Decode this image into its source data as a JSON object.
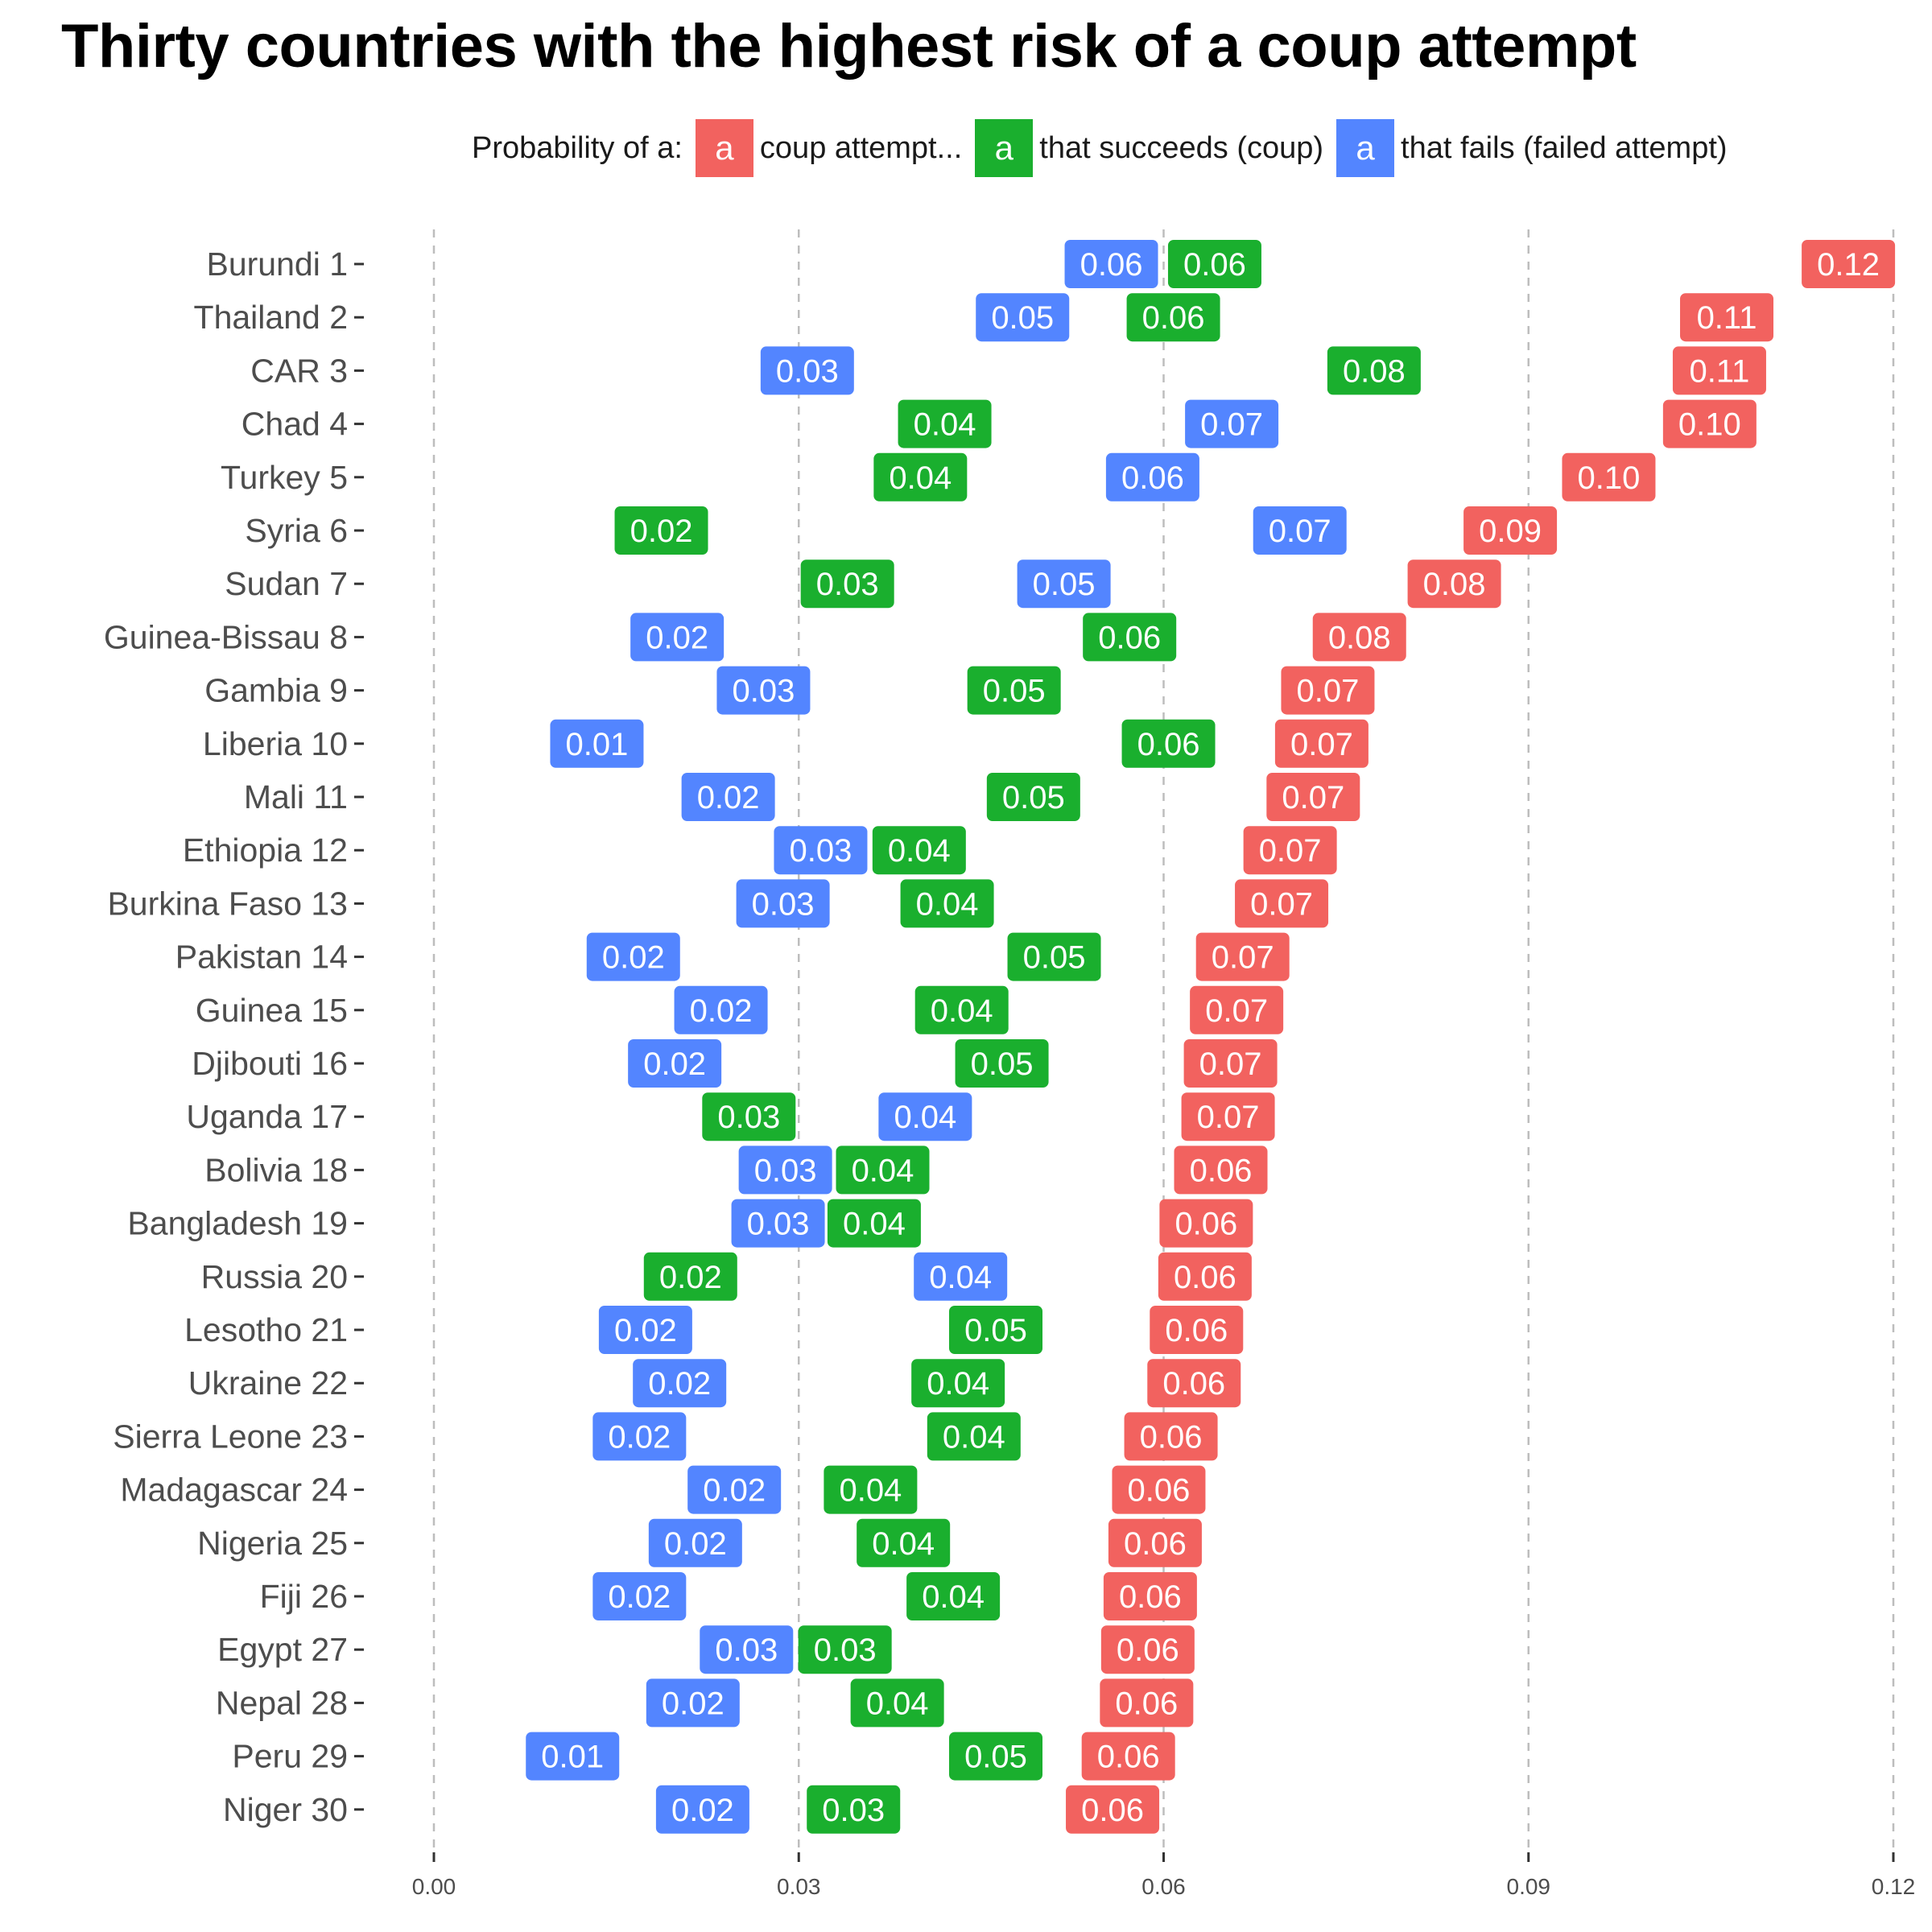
{
  "chart_data": {
    "type": "scatter",
    "title": "Thirty countries with the highest risk of a coup attempt",
    "xlabel": "",
    "ylabel": "",
    "xlim": [
      0,
      0.12
    ],
    "x_ticks": [
      "0.00",
      "0.03",
      "0.06",
      "0.09",
      "0.12"
    ],
    "x_tick_values": [
      0,
      0.03,
      0.06,
      0.09,
      0.12
    ],
    "grid": "vertical dashed",
    "legend": {
      "title": "Probability of a:",
      "placement": "top",
      "entries": [
        {
          "key": "attempt",
          "glyph": "a",
          "label": "coup attempt...",
          "color": "#F2625F"
        },
        {
          "key": "coup",
          "glyph": "a",
          "label": "that succeeds (coup)",
          "color": "#1AAF2E"
        },
        {
          "key": "failed",
          "glyph": "a",
          "label": "that fails (failed attempt)",
          "color": "#5385FF"
        }
      ]
    },
    "categories": [
      "Burundi 1",
      "Thailand 2",
      "CAR 3",
      "Chad 4",
      "Turkey 5",
      "Syria 6",
      "Sudan 7",
      "Guinea-Bissau 8",
      "Gambia 9",
      "Liberia 10",
      "Mali 11",
      "Ethiopia 12",
      "Burkina Faso 13",
      "Pakistan 14",
      "Guinea 15",
      "Djibouti 16",
      "Uganda 17",
      "Bolivia 18",
      "Bangladesh 19",
      "Russia 20",
      "Lesotho 21",
      "Ukraine 22",
      "Sierra Leone 23",
      "Madagascar 24",
      "Nigeria 25",
      "Fiji 26",
      "Egypt 27",
      "Nepal 28",
      "Peru 29",
      "Niger 30"
    ],
    "series": [
      {
        "name": "coup attempt",
        "key": "attempt",
        "color": "#F2625F",
        "values": [
          0.1163,
          0.1063,
          0.1057,
          0.1049,
          0.0966,
          0.0885,
          0.0839,
          0.0761,
          0.0735,
          0.073,
          0.0723,
          0.0704,
          0.0697,
          0.0665,
          0.066,
          0.0655,
          0.0653,
          0.0647,
          0.0635,
          0.0634,
          0.0627,
          0.0625,
          0.0606,
          0.0596,
          0.0593,
          0.0589,
          0.0587,
          0.0586,
          0.0571,
          0.0558
        ],
        "labels": [
          "0.12",
          "0.11",
          "0.11",
          "0.10",
          "0.10",
          "0.09",
          "0.08",
          "0.08",
          "0.07",
          "0.07",
          "0.07",
          "0.07",
          "0.07",
          "0.07",
          "0.07",
          "0.07",
          "0.07",
          "0.06",
          "0.06",
          "0.06",
          "0.06",
          "0.06",
          "0.06",
          "0.06",
          "0.06",
          "0.06",
          "0.06",
          "0.06",
          "0.06",
          "0.06"
        ]
      },
      {
        "name": "that succeeds (coup)",
        "key": "coup",
        "color": "#1AAF2E",
        "values": [
          0.0642,
          0.0608,
          0.0773,
          0.042,
          0.04,
          0.0187,
          0.034,
          0.0572,
          0.0477,
          0.0604,
          0.0493,
          0.0399,
          0.0422,
          0.051,
          0.0434,
          0.0467,
          0.0259,
          0.0369,
          0.0362,
          0.0211,
          0.0462,
          0.0431,
          0.0444,
          0.0359,
          0.0386,
          0.0427,
          0.0338,
          0.0381,
          0.0462,
          0.0345
        ],
        "labels": [
          "0.06",
          "0.06",
          "0.08",
          "0.04",
          "0.04",
          "0.02",
          "0.03",
          "0.06",
          "0.05",
          "0.06",
          "0.05",
          "0.04",
          "0.04",
          "0.05",
          "0.04",
          "0.05",
          "0.03",
          "0.04",
          "0.04",
          "0.02",
          "0.05",
          "0.04",
          "0.04",
          "0.04",
          "0.04",
          "0.04",
          "0.03",
          "0.04",
          "0.05",
          "0.03"
        ]
      },
      {
        "name": "that fails (failed attempt)",
        "key": "failed",
        "color": "#5385FF",
        "values": [
          0.0557,
          0.0484,
          0.0307,
          0.0656,
          0.0591,
          0.0712,
          0.0518,
          0.02,
          0.0271,
          0.0134,
          0.0242,
          0.0318,
          0.0287,
          0.0164,
          0.0236,
          0.0198,
          0.0404,
          0.0289,
          0.0283,
          0.0433,
          0.0174,
          0.0202,
          0.0169,
          0.0247,
          0.0215,
          0.0169,
          0.0257,
          0.0213,
          0.0114,
          0.0221
        ],
        "labels": [
          "0.06",
          "0.05",
          "0.03",
          "0.07",
          "0.06",
          "0.07",
          "0.05",
          "0.02",
          "0.03",
          "0.01",
          "0.02",
          "0.03",
          "0.03",
          "0.02",
          "0.02",
          "0.02",
          "0.04",
          "0.03",
          "0.03",
          "0.04",
          "0.02",
          "0.02",
          "0.02",
          "0.02",
          "0.02",
          "0.02",
          "0.03",
          "0.02",
          "0.01",
          "0.02"
        ]
      }
    ]
  }
}
